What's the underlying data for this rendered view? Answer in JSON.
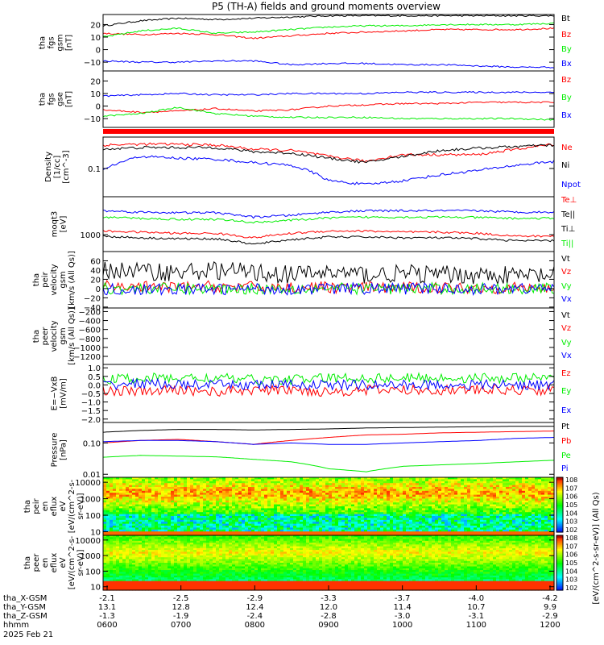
{
  "title": "P5 (TH-A) fields and ground moments overview",
  "colors": {
    "black": "#000000",
    "red": "#ff0000",
    "green": "#00ee00",
    "blue": "#0000ff"
  },
  "chart_data": [
    {
      "type": "line",
      "ylabel": [
        "tha",
        "fgs",
        "gsm",
        "[nT]"
      ],
      "ylim": [
        -17,
        28
      ],
      "yticks": [
        "20",
        "10",
        "0",
        "−10"
      ],
      "yticks_values": [
        20,
        10,
        0,
        -10
      ],
      "series": [
        {
          "name": "Bt",
          "color": "#000000",
          "values": [
            19,
            23,
            25,
            24,
            25,
            26,
            27,
            27,
            27,
            27,
            27,
            27,
            27
          ]
        },
        {
          "name": "Bz",
          "color": "#ff0000",
          "values": [
            13,
            12,
            13,
            12,
            9,
            11,
            13,
            14,
            15,
            16,
            16,
            16,
            17
          ]
        },
        {
          "name": "By",
          "color": "#00ee00",
          "values": [
            10,
            15,
            17,
            13,
            14,
            16,
            18,
            19,
            19,
            20,
            20,
            20,
            21
          ]
        },
        {
          "name": "Bx",
          "color": "#0000ff",
          "values": [
            -9,
            -10,
            -10,
            -9,
            -9,
            -12,
            -11,
            -11,
            -12,
            -12,
            -13,
            -14,
            -14
          ]
        }
      ]
    },
    {
      "type": "line",
      "ylabel": [
        "tha",
        "fgs",
        "gse",
        "[nT]"
      ],
      "ylim": [
        -17,
        28
      ],
      "yticks": [
        "20",
        "10",
        "0",
        "−10"
      ],
      "yticks_values": [
        20,
        10,
        0,
        -10
      ],
      "series": [
        {
          "name": "Bz",
          "color": "#ff0000",
          "values": [
            -3,
            -5,
            -4,
            -2,
            -4,
            -3,
            0,
            1,
            2,
            2,
            3,
            3,
            3
          ]
        },
        {
          "name": "By",
          "color": "#00ee00",
          "values": [
            -8,
            -6,
            -1,
            -6,
            -8,
            -9,
            -9,
            -9,
            -10,
            -10,
            -10,
            -10,
            -11
          ]
        },
        {
          "name": "Bx",
          "color": "#0000ff",
          "values": [
            8,
            9,
            10,
            9,
            9,
            10,
            10,
            10,
            11,
            11,
            11,
            11,
            11
          ]
        }
      ]
    },
    {
      "type": "line",
      "yscale": "log",
      "ylabel": [
        "Density",
        "[1/cc]",
        "[cm^-3]"
      ],
      "ylim": [
        0.02,
        0.6
      ],
      "yticks": [
        "0.1"
      ],
      "yticks_values": [
        0.1
      ],
      "series": [
        {
          "name": "Ne",
          "color": "#ff0000",
          "values": [
            0.38,
            0.4,
            0.4,
            0.38,
            0.3,
            0.28,
            0.2,
            0.15,
            0.22,
            0.22,
            0.22,
            0.3,
            0.4
          ]
        },
        {
          "name": "Ni",
          "color": "#000000",
          "values": [
            0.3,
            0.33,
            0.33,
            0.33,
            0.26,
            0.24,
            0.18,
            0.14,
            0.2,
            0.28,
            0.32,
            0.35,
            0.38
          ]
        },
        {
          "name": "Npot",
          "color": "#0000ff",
          "values": [
            0.09,
            0.2,
            0.18,
            0.17,
            0.14,
            0.12,
            0.05,
            0.04,
            0.05,
            0.07,
            0.09,
            0.12,
            0.15
          ]
        }
      ]
    },
    {
      "type": "line",
      "yscale": "log",
      "ylabel": [
        "moqt3",
        "[eV]"
      ],
      "ylim": [
        300,
        15000
      ],
      "yticks": [
        "1000"
      ],
      "yticks_values": [
        1000
      ],
      "series": [
        {
          "name": "Te⊥",
          "color": "#ff0000",
          "values": [
            1300,
            1200,
            1100,
            1100,
            800,
            1100,
            1300,
            1300,
            1200,
            1200,
            1100,
            900,
            900
          ]
        },
        {
          "name": "Te||",
          "color": "#0000ff",
          "values": [
            5500,
            5000,
            4800,
            4800,
            3500,
            4000,
            5000,
            5500,
            5500,
            5500,
            5500,
            5000,
            5000
          ]
        },
        {
          "name": "Ti⊥",
          "color": "#000000",
          "values": [
            900,
            800,
            750,
            750,
            500,
            700,
            850,
            850,
            800,
            800,
            750,
            650,
            650
          ]
        },
        {
          "name": "Ti||",
          "color": "#00ee00",
          "values": [
            3500,
            3200,
            3000,
            3000,
            2400,
            2800,
            3300,
            3500,
            3500,
            3500,
            3400,
            3200,
            3200
          ]
        }
      ]
    },
    {
      "type": "line",
      "ylabel": [
        "tha",
        "peir",
        "velocity",
        "gsm",
        "[km/s (All Qs)]"
      ],
      "ylim": [
        -42,
        80
      ],
      "yticks": [
        "60",
        "40",
        "20",
        "0",
        "−20",
        "−40"
      ],
      "yticks_values": [
        60,
        40,
        20,
        0,
        -20,
        -40
      ],
      "series": [
        {
          "name": "Vt",
          "color": "#000000",
          "values": [
            40,
            38,
            35,
            40,
            35,
            30,
            35,
            30,
            32,
            30,
            30,
            28,
            28
          ]
        },
        {
          "name": "Vz",
          "color": "#ff0000",
          "values": [
            5,
            4,
            2,
            5,
            3,
            2,
            3,
            2,
            2,
            2,
            2,
            1,
            1
          ]
        },
        {
          "name": "Vy",
          "color": "#00ee00",
          "values": [
            0,
            0,
            0,
            -1,
            0,
            0,
            0,
            0,
            0,
            0,
            0,
            0,
            0
          ]
        },
        {
          "name": "Vx",
          "color": "#0000ff",
          "values": [
            -2,
            -3,
            -1,
            -2,
            0,
            -1,
            0,
            0,
            0,
            0,
            -1,
            0,
            0
          ]
        }
      ]
    },
    {
      "type": "line",
      "ylabel": [
        "tha",
        "peer",
        "velocity",
        "gsm",
        "[km/s (All Qs)]"
      ],
      "ylim": [
        -1380,
        -120
      ],
      "yticks": [
        "−200",
        "−400",
        "−600",
        "−800",
        "−1000",
        "−1200"
      ],
      "yticks_values": [
        -200,
        -400,
        -600,
        -800,
        -1000,
        -1200
      ],
      "series": [
        {
          "name": "Vt",
          "color": "#000000",
          "values": []
        },
        {
          "name": "Vz",
          "color": "#ff0000",
          "values": []
        },
        {
          "name": "Vy",
          "color": "#00ee00",
          "values": []
        },
        {
          "name": "Vx",
          "color": "#0000ff",
          "values": []
        }
      ]
    },
    {
      "type": "line",
      "ylabel": [
        "E=−VxB",
        "[mV/m]"
      ],
      "ylim": [
        -2.2,
        1.2
      ],
      "yticks": [
        "1.0",
        "0.5",
        "0.0",
        "−0.5",
        "−1.0",
        "−1.5",
        "−2.0"
      ],
      "yticks_values": [
        1.0,
        0.5,
        0.0,
        -0.5,
        -1.0,
        -1.5,
        -2.0
      ],
      "series": [
        {
          "name": "Ez",
          "color": "#ff0000",
          "values": [
            -0.3,
            -0.4,
            -0.3,
            -0.4,
            -0.3,
            -0.3,
            -0.4,
            -0.3,
            -0.3,
            -0.3,
            -0.3,
            -0.3,
            -0.3
          ]
        },
        {
          "name": "Ey",
          "color": "#00ee00",
          "values": [
            0.3,
            0.4,
            0.4,
            0.4,
            0.3,
            0.3,
            0.4,
            0.4,
            0.4,
            0.4,
            0.4,
            0.4,
            0.4
          ]
        },
        {
          "name": "Ex",
          "color": "#0000ff",
          "values": [
            0.0,
            0.1,
            0.0,
            0.0,
            0.0,
            0.0,
            0.0,
            0.0,
            0.0,
            0.0,
            0.0,
            0.0,
            0.0
          ]
        }
      ]
    },
    {
      "type": "line",
      "yscale": "log",
      "ylabel": [
        "Pressure",
        "[nPa]"
      ],
      "ylim": [
        0.008,
        0.45
      ],
      "yticks": [
        "0.10",
        "0.01"
      ],
      "yticks_values": [
        0.1,
        0.01
      ],
      "series": [
        {
          "name": "Pt",
          "color": "#000000",
          "values": [
            0.22,
            0.25,
            0.27,
            0.27,
            0.26,
            0.27,
            0.28,
            0.3,
            0.31,
            0.32,
            0.33,
            0.34,
            0.34
          ]
        },
        {
          "name": "Pb",
          "color": "#ff0000",
          "values": [
            0.1,
            0.12,
            0.13,
            0.11,
            0.09,
            0.12,
            0.15,
            0.18,
            0.19,
            0.21,
            0.22,
            0.23,
            0.24
          ]
        },
        {
          "name": "Pe",
          "color": "#00ee00",
          "values": [
            0.035,
            0.04,
            0.038,
            0.036,
            0.03,
            0.025,
            0.015,
            0.012,
            0.018,
            0.02,
            0.022,
            0.025,
            0.028
          ]
        },
        {
          "name": "Pi",
          "color": "#0000ff",
          "values": [
            0.11,
            0.12,
            0.12,
            0.11,
            0.09,
            0.1,
            0.09,
            0.09,
            0.1,
            0.11,
            0.12,
            0.14,
            0.15
          ]
        }
      ]
    },
    {
      "type": "heatmap",
      "yscale": "log",
      "ylabel": [
        "tha",
        "peir",
        "en",
        "eflux",
        "eV",
        "[eV/(cm^2-s-",
        "sr-eV)]"
      ],
      "ylim": [
        6,
        20000
      ],
      "yticks": [
        "10000",
        "1000",
        "100",
        "10"
      ],
      "yticks_values": [
        10000,
        1000,
        100,
        10
      ]
    },
    {
      "type": "heatmap",
      "yscale": "log",
      "ylabel": [
        "tha",
        "peer",
        "en",
        "eflux",
        "eV",
        "[eV/(cm^2-s-",
        "sr-eV)]"
      ],
      "ylim": [
        6,
        20000
      ],
      "yticks": [
        "10000",
        "1000",
        "100",
        "10"
      ],
      "yticks_values": [
        10000,
        1000,
        100,
        10
      ]
    }
  ],
  "legend_labels": [
    [
      "Bt",
      "Bz",
      "By",
      "Bx"
    ],
    [
      "Bz",
      "By",
      "Bx"
    ],
    [
      "Ne",
      "Ni",
      "Npot"
    ],
    [
      "Te⊥",
      "Te||",
      "Ti⊥",
      "Ti||"
    ],
    [
      "Vt",
      "Vz",
      "Vy",
      "Vx"
    ],
    [
      "Vt",
      "Vz",
      "Vy",
      "Vx"
    ],
    [
      "Ez",
      "Ey",
      "Ex"
    ],
    [
      "Pt",
      "Pb",
      "Pe",
      "Pi"
    ]
  ],
  "colorbar": {
    "label": "[eV/(cm^2-s-sr-eV)] (All Qs)",
    "ticks1": [
      "10^8",
      "10^7",
      "10^6",
      "10^5",
      "10^4",
      "10^3",
      "10^2"
    ],
    "ticks2": [
      "10^8",
      "10^7",
      "10^6",
      "10^5",
      "10^4",
      "10^3",
      "10^2"
    ]
  },
  "xaxis": {
    "row_labels": [
      "tha_X-GSM",
      "tha_Y-GSM",
      "tha_Z-GSM",
      "hhmm",
      "2025 Feb 21"
    ],
    "x_gsm": [
      "-2.1",
      "-2.5",
      "-2.9",
      "-3.3",
      "-3.7",
      "-4.0",
      "-4.2"
    ],
    "y_gsm": [
      "13.1",
      "12.8",
      "12.4",
      "12.0",
      "11.4",
      "10.7",
      "9.9"
    ],
    "z_gsm": [
      "-1.3",
      "-1.9",
      "-2.4",
      "-2.8",
      "-3.0",
      "-3.1",
      "-2.9"
    ],
    "hhmm": [
      "0600",
      "0700",
      "0800",
      "0900",
      "1000",
      "1100",
      "1200"
    ]
  }
}
